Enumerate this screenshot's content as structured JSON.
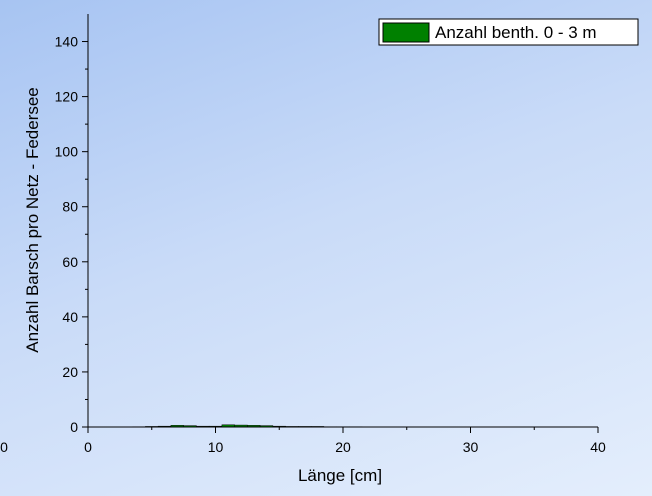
{
  "chart_data": {
    "type": "bar",
    "xlabel": "Länge [cm]",
    "ylabel": "Anzahl Barsch pro Netz - Federsee",
    "xlim": [
      0,
      40
    ],
    "ylim": [
      0,
      150
    ],
    "xticks": [
      0,
      10,
      20,
      30,
      40
    ],
    "yticks": [
      0,
      20,
      40,
      60,
      80,
      100,
      120,
      140
    ],
    "left_edge_label": "0",
    "grid": false,
    "legend_position": "top-right",
    "series": [
      {
        "name": "Anzahl benth. 0 - 3 m",
        "color": "#008000",
        "bin_width": 1,
        "x": [
          4,
          5,
          6,
          7,
          8,
          9,
          10,
          11,
          12,
          13,
          14,
          15,
          16,
          17,
          18,
          19,
          20,
          21
        ],
        "values": [
          0.1,
          0.2,
          0.3,
          0.6,
          0.5,
          0.3,
          0.3,
          0.8,
          0.7,
          0.6,
          0.5,
          0.3,
          0.2,
          0.2,
          0.2,
          0.1,
          0.1,
          0.1
        ]
      }
    ]
  }
}
